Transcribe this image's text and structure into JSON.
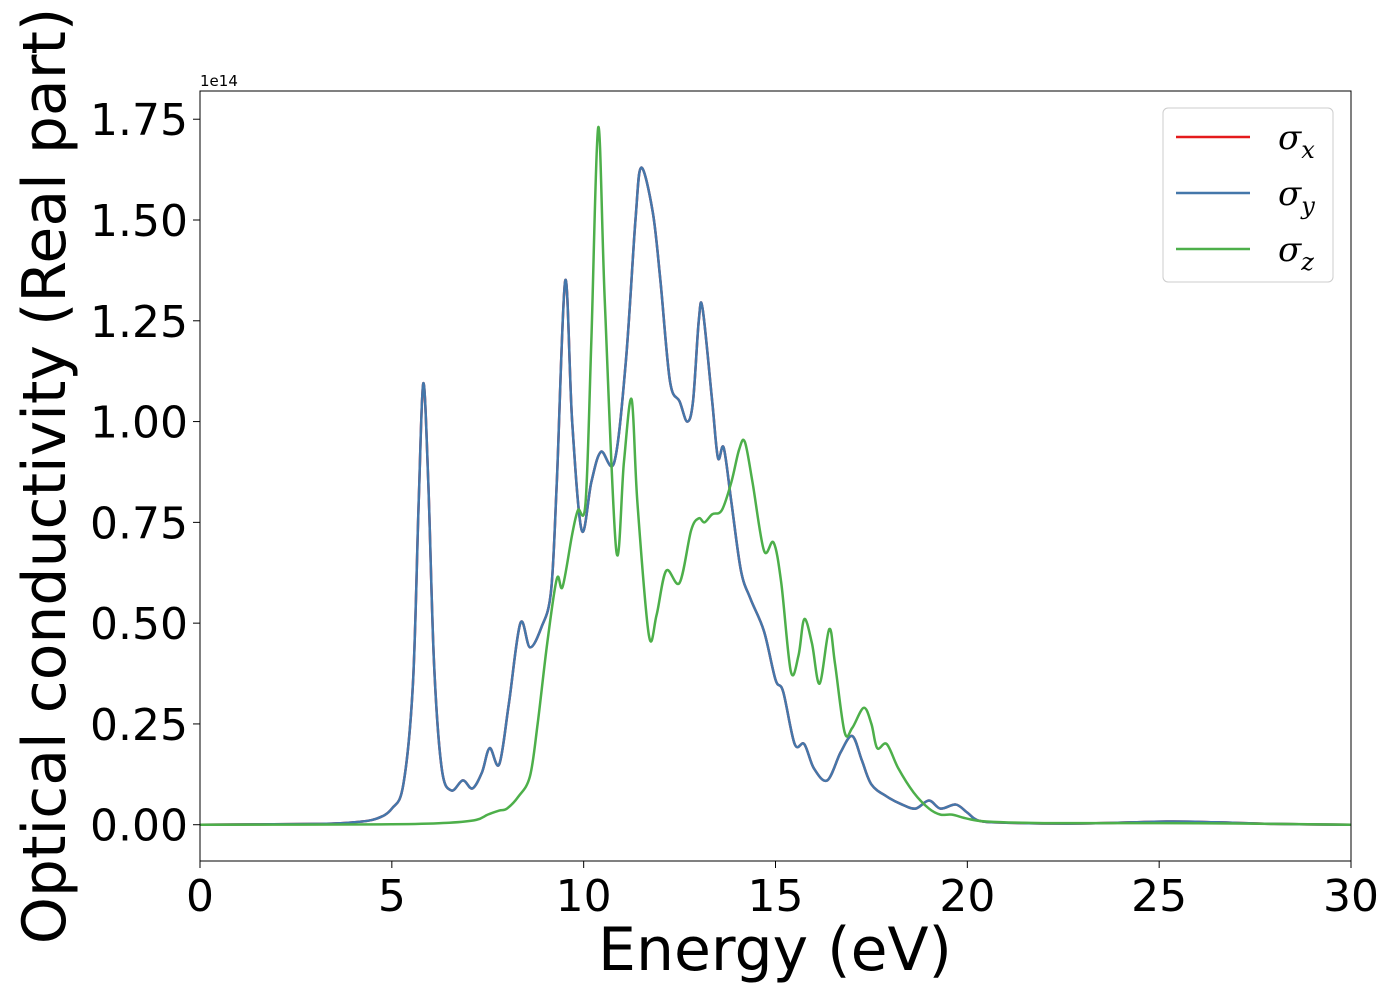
{
  "chart_data": {
    "type": "line",
    "xlabel": "Energy (eV)",
    "ylabel": "Optical conductivity (Real part)",
    "y_offset_label": "1e14",
    "y_scale": 100000000000000.0,
    "xlim": [
      0,
      30
    ],
    "ylim": [
      -0.09,
      1.82
    ],
    "x_ticks": [
      0,
      5,
      10,
      15,
      20,
      25,
      30
    ],
    "x_tick_labels": [
      "0",
      "5",
      "10",
      "15",
      "20",
      "25",
      "30"
    ],
    "y_ticks": [
      0,
      0.25,
      0.5,
      0.75,
      1.0,
      1.25,
      1.5,
      1.75
    ],
    "y_tick_labels": [
      "0.00",
      "0.25",
      "0.50",
      "0.75",
      "1.00",
      "1.25",
      "1.50",
      "1.75"
    ],
    "grid": false,
    "legend_position": "top-right",
    "series": [
      {
        "name": "σ_x",
        "legend_base": "σ",
        "legend_sub": "x",
        "color": "#e41a1c",
        "points": [
          [
            0,
            0
          ],
          [
            3,
            0.002
          ],
          [
            4,
            0.006
          ],
          [
            4.6,
            0.015
          ],
          [
            5.0,
            0.04
          ],
          [
            5.3,
            0.1
          ],
          [
            5.55,
            0.35
          ],
          [
            5.7,
            0.8
          ],
          [
            5.82,
            1.095
          ],
          [
            5.95,
            0.85
          ],
          [
            6.1,
            0.4
          ],
          [
            6.3,
            0.14
          ],
          [
            6.55,
            0.085
          ],
          [
            6.85,
            0.11
          ],
          [
            7.1,
            0.09
          ],
          [
            7.35,
            0.13
          ],
          [
            7.55,
            0.19
          ],
          [
            7.8,
            0.15
          ],
          [
            8.05,
            0.3
          ],
          [
            8.35,
            0.5
          ],
          [
            8.6,
            0.44
          ],
          [
            8.9,
            0.49
          ],
          [
            9.15,
            0.58
          ],
          [
            9.3,
            0.85
          ],
          [
            9.52,
            1.35
          ],
          [
            9.7,
            1.0
          ],
          [
            9.95,
            0.73
          ],
          [
            10.2,
            0.85
          ],
          [
            10.45,
            0.925
          ],
          [
            10.8,
            0.9
          ],
          [
            11.1,
            1.15
          ],
          [
            11.35,
            1.5
          ],
          [
            11.5,
            1.63
          ],
          [
            11.8,
            1.52
          ],
          [
            12.0,
            1.35
          ],
          [
            12.25,
            1.1
          ],
          [
            12.5,
            1.05
          ],
          [
            12.7,
            1.0
          ],
          [
            12.85,
            1.05
          ],
          [
            13.0,
            1.25
          ],
          [
            13.1,
            1.28
          ],
          [
            13.35,
            1.05
          ],
          [
            13.5,
            0.91
          ],
          [
            13.65,
            0.935
          ],
          [
            13.85,
            0.8
          ],
          [
            14.1,
            0.63
          ],
          [
            14.35,
            0.56
          ],
          [
            14.7,
            0.48
          ],
          [
            15.0,
            0.36
          ],
          [
            15.2,
            0.33
          ],
          [
            15.5,
            0.2
          ],
          [
            15.75,
            0.2
          ],
          [
            16.0,
            0.14
          ],
          [
            16.35,
            0.11
          ],
          [
            16.7,
            0.18
          ],
          [
            17.0,
            0.22
          ],
          [
            17.25,
            0.16
          ],
          [
            17.5,
            0.1
          ],
          [
            17.9,
            0.07
          ],
          [
            18.3,
            0.05
          ],
          [
            18.65,
            0.04
          ],
          [
            19.0,
            0.06
          ],
          [
            19.3,
            0.04
          ],
          [
            19.7,
            0.05
          ],
          [
            20.0,
            0.03
          ],
          [
            20.3,
            0.01
          ],
          [
            21,
            0.005
          ],
          [
            23,
            0.003
          ],
          [
            25.2,
            0.008
          ],
          [
            26.5,
            0.006
          ],
          [
            28,
            0.002
          ],
          [
            30,
            0
          ]
        ]
      },
      {
        "name": "σ_y",
        "legend_base": "σ",
        "legend_sub": "y",
        "color": "#4477aa",
        "points": [
          [
            0,
            0
          ],
          [
            3,
            0.002
          ],
          [
            4,
            0.006
          ],
          [
            4.6,
            0.015
          ],
          [
            5.0,
            0.04
          ],
          [
            5.3,
            0.1
          ],
          [
            5.55,
            0.35
          ],
          [
            5.7,
            0.8
          ],
          [
            5.82,
            1.095
          ],
          [
            5.95,
            0.85
          ],
          [
            6.1,
            0.4
          ],
          [
            6.3,
            0.14
          ],
          [
            6.55,
            0.085
          ],
          [
            6.85,
            0.11
          ],
          [
            7.1,
            0.09
          ],
          [
            7.35,
            0.13
          ],
          [
            7.55,
            0.19
          ],
          [
            7.8,
            0.15
          ],
          [
            8.05,
            0.3
          ],
          [
            8.35,
            0.5
          ],
          [
            8.6,
            0.44
          ],
          [
            8.9,
            0.49
          ],
          [
            9.15,
            0.58
          ],
          [
            9.3,
            0.85
          ],
          [
            9.52,
            1.35
          ],
          [
            9.7,
            1.0
          ],
          [
            9.95,
            0.73
          ],
          [
            10.2,
            0.85
          ],
          [
            10.45,
            0.925
          ],
          [
            10.8,
            0.9
          ],
          [
            11.1,
            1.15
          ],
          [
            11.35,
            1.5
          ],
          [
            11.5,
            1.63
          ],
          [
            11.8,
            1.52
          ],
          [
            12.0,
            1.35
          ],
          [
            12.25,
            1.1
          ],
          [
            12.5,
            1.05
          ],
          [
            12.7,
            1.0
          ],
          [
            12.85,
            1.05
          ],
          [
            13.0,
            1.25
          ],
          [
            13.1,
            1.28
          ],
          [
            13.35,
            1.05
          ],
          [
            13.5,
            0.91
          ],
          [
            13.65,
            0.935
          ],
          [
            13.85,
            0.8
          ],
          [
            14.1,
            0.63
          ],
          [
            14.35,
            0.56
          ],
          [
            14.7,
            0.48
          ],
          [
            15.0,
            0.36
          ],
          [
            15.2,
            0.33
          ],
          [
            15.5,
            0.2
          ],
          [
            15.75,
            0.2
          ],
          [
            16.0,
            0.14
          ],
          [
            16.35,
            0.11
          ],
          [
            16.7,
            0.18
          ],
          [
            17.0,
            0.22
          ],
          [
            17.25,
            0.16
          ],
          [
            17.5,
            0.1
          ],
          [
            17.9,
            0.07
          ],
          [
            18.3,
            0.05
          ],
          [
            18.65,
            0.04
          ],
          [
            19.0,
            0.06
          ],
          [
            19.3,
            0.04
          ],
          [
            19.7,
            0.05
          ],
          [
            20.0,
            0.03
          ],
          [
            20.3,
            0.01
          ],
          [
            21,
            0.005
          ],
          [
            23,
            0.003
          ],
          [
            25.2,
            0.008
          ],
          [
            26.5,
            0.006
          ],
          [
            28,
            0.002
          ],
          [
            30,
            0
          ]
        ]
      },
      {
        "name": "σ_z",
        "legend_base": "σ",
        "legend_sub": "z",
        "color": "#4daf4a",
        "points": [
          [
            0,
            0
          ],
          [
            5,
            0.001
          ],
          [
            6.5,
            0.005
          ],
          [
            7.2,
            0.012
          ],
          [
            7.5,
            0.025
          ],
          [
            7.8,
            0.035
          ],
          [
            8.0,
            0.04
          ],
          [
            8.3,
            0.07
          ],
          [
            8.6,
            0.12
          ],
          [
            8.8,
            0.25
          ],
          [
            9.05,
            0.45
          ],
          [
            9.3,
            0.61
          ],
          [
            9.45,
            0.59
          ],
          [
            9.7,
            0.72
          ],
          [
            9.85,
            0.78
          ],
          [
            10.05,
            0.8
          ],
          [
            10.2,
            1.2
          ],
          [
            10.38,
            1.73
          ],
          [
            10.55,
            1.3
          ],
          [
            10.85,
            0.68
          ],
          [
            11.05,
            0.9
          ],
          [
            11.25,
            1.055
          ],
          [
            11.4,
            0.8
          ],
          [
            11.7,
            0.47
          ],
          [
            11.9,
            0.52
          ],
          [
            12.15,
            0.63
          ],
          [
            12.5,
            0.6
          ],
          [
            12.8,
            0.73
          ],
          [
            13.0,
            0.76
          ],
          [
            13.15,
            0.75
          ],
          [
            13.35,
            0.77
          ],
          [
            13.6,
            0.78
          ],
          [
            13.85,
            0.85
          ],
          [
            14.05,
            0.93
          ],
          [
            14.2,
            0.95
          ],
          [
            14.4,
            0.85
          ],
          [
            14.7,
            0.68
          ],
          [
            14.95,
            0.7
          ],
          [
            15.15,
            0.6
          ],
          [
            15.4,
            0.38
          ],
          [
            15.6,
            0.42
          ],
          [
            15.75,
            0.51
          ],
          [
            15.95,
            0.45
          ],
          [
            16.15,
            0.35
          ],
          [
            16.4,
            0.485
          ],
          [
            16.55,
            0.4
          ],
          [
            16.8,
            0.23
          ],
          [
            17.0,
            0.24
          ],
          [
            17.3,
            0.29
          ],
          [
            17.5,
            0.25
          ],
          [
            17.65,
            0.19
          ],
          [
            17.9,
            0.2
          ],
          [
            18.2,
            0.14
          ],
          [
            18.6,
            0.08
          ],
          [
            19.0,
            0.04
          ],
          [
            19.3,
            0.025
          ],
          [
            19.6,
            0.025
          ],
          [
            20.0,
            0.015
          ],
          [
            20.5,
            0.008
          ],
          [
            22,
            0.004
          ],
          [
            25,
            0.004
          ],
          [
            27,
            0.003
          ],
          [
            30,
            0
          ]
        ]
      }
    ]
  }
}
